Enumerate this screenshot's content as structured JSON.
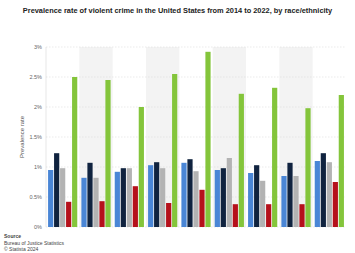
{
  "chart_data": {
    "type": "bar",
    "title": "Prevalence rate of violent crime in the United States from 2014 to 2022, by race/ethnicity",
    "y_label": "Prevalence rate",
    "source": "Source",
    "source_name": "Bureau of Justice Statistics",
    "copyright": "© Statista 2024",
    "categories": [
      null,
      null,
      null,
      null,
      null,
      null,
      null,
      null,
      null
    ],
    "series": [
      {
        "color": "#4a86d6",
        "values": [
          0.95,
          0.82,
          0.92,
          1.03,
          1.07,
          0.95,
          0.9,
          0.85,
          1.1
        ]
      },
      {
        "color": "#10233f",
        "values": [
          1.23,
          1.07,
          0.98,
          1.08,
          1.13,
          0.98,
          1.03,
          1.07,
          1.23
        ]
      },
      {
        "color": "#b3b3b3",
        "values": [
          0.98,
          0.82,
          0.98,
          0.98,
          0.93,
          1.15,
          0.77,
          0.85,
          1.08
        ]
      },
      {
        "color": "#b5111b",
        "values": [
          0.42,
          0.43,
          0.68,
          0.4,
          0.62,
          0.38,
          0.38,
          0.38,
          0.75
        ]
      },
      {
        "color": "#84c53b",
        "values": [
          2.5,
          2.45,
          2.0,
          2.55,
          2.92,
          2.22,
          2.32,
          1.98,
          2.2
        ]
      }
    ],
    "ylim": [
      0,
      3
    ],
    "yticks": [
      {
        "value": 0,
        "label": "0%"
      },
      {
        "value": 0.5,
        "label": "0.5%"
      },
      {
        "value": 1,
        "label": "1%"
      },
      {
        "value": 1.5,
        "label": "1.5%"
      },
      {
        "value": 2,
        "label": "2%"
      },
      {
        "value": 2.5,
        "label": "2.5%"
      },
      {
        "value": 3,
        "label": "3%"
      }
    ],
    "grid": true,
    "tick_labels": "y"
  }
}
